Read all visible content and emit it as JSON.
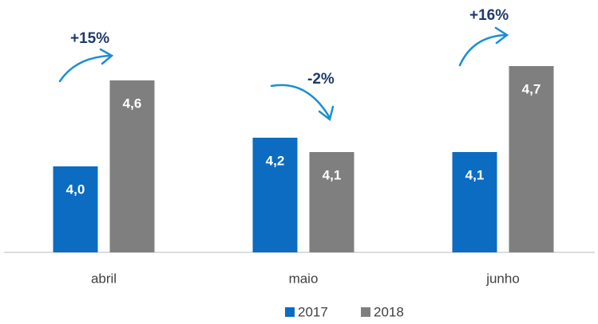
{
  "chart_data": {
    "type": "bar",
    "categories": [
      "abril",
      "maio",
      "junho"
    ],
    "series": [
      {
        "name": "2017",
        "color": "#0b6cc2",
        "values": [
          4.0,
          4.2,
          4.1
        ],
        "value_labels": [
          "4,0",
          "4,2",
          "4,1"
        ]
      },
      {
        "name": "2018",
        "color": "#7f7f7f",
        "values": [
          4.6,
          4.1,
          4.7
        ],
        "value_labels": [
          "4,6",
          "4,1",
          "4,7"
        ]
      }
    ],
    "ylim": [
      3.4,
      5.0
    ],
    "annotations": [
      "+15%",
      "-2%",
      "+16%"
    ],
    "legend": "bottom"
  }
}
